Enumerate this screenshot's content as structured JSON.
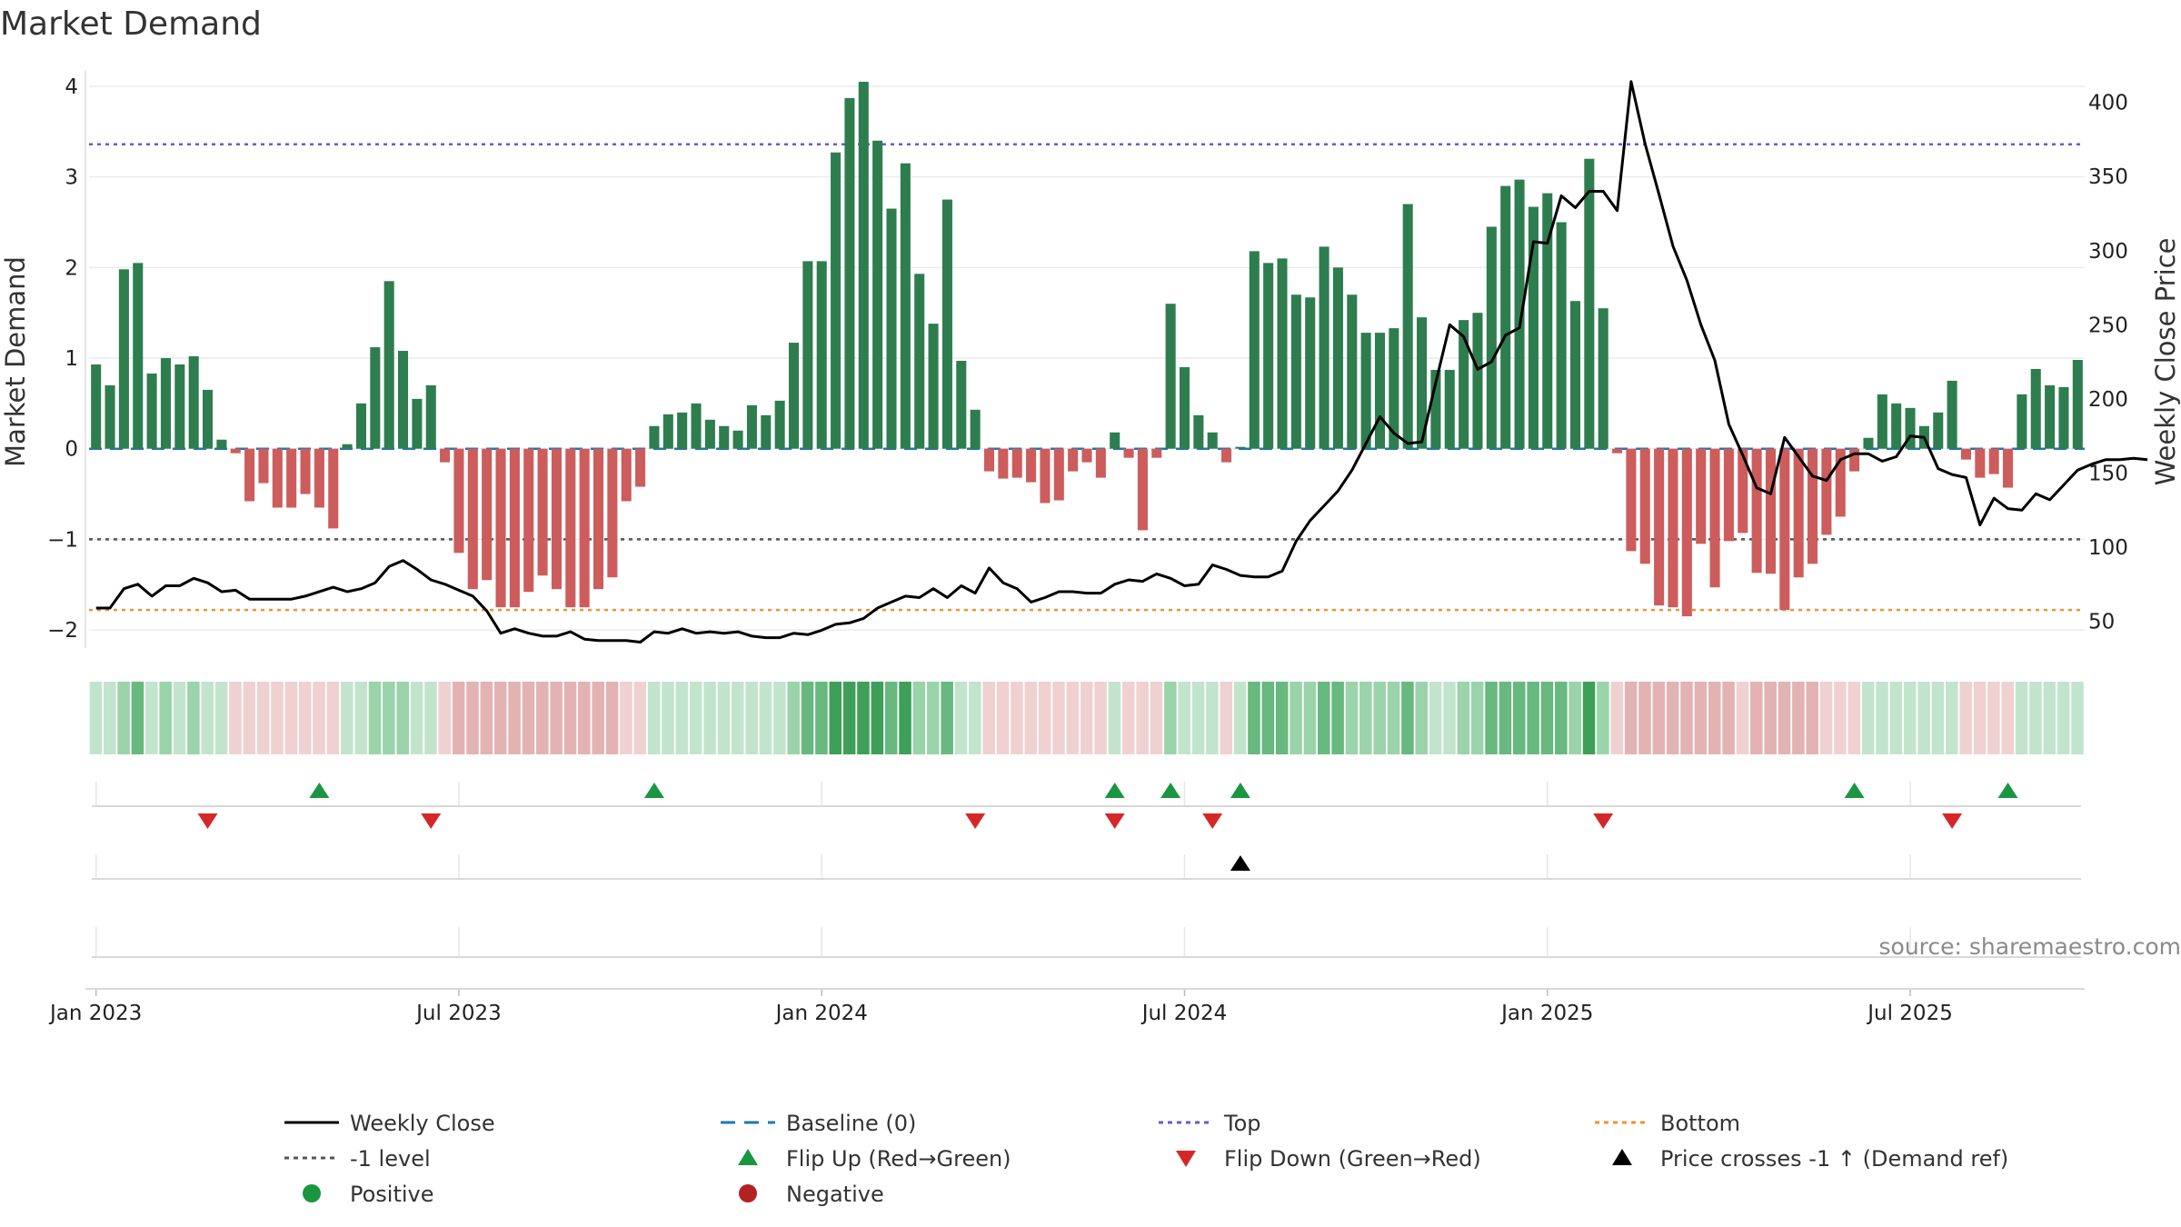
{
  "chart_data": {
    "type": "bar",
    "title": "Market Demand",
    "ylabel": "Market Demand",
    "y2label": "Weekly Close Price",
    "ylim": [
      -2.2,
      4.15
    ],
    "y2lim": [
      32,
      420
    ],
    "yticks": [
      -2,
      -1,
      0,
      1,
      2,
      3,
      4
    ],
    "y2ticks": [
      50,
      100,
      150,
      200,
      250,
      300,
      350,
      400
    ],
    "xticks": [
      {
        "label": "Jan 2023",
        "week": 1
      },
      {
        "label": "Jul 2023",
        "week": 27
      },
      {
        "label": "Jan 2024",
        "week": 53
      },
      {
        "label": "Jul 2024",
        "week": 79
      },
      {
        "label": "Jan 2025",
        "week": 105
      },
      {
        "label": "Jul 2025",
        "week": 131
      }
    ],
    "levels": {
      "top": 3.36,
      "bottom": -1.78,
      "minus_one": -1,
      "baseline": 0
    },
    "demand": [
      0.93,
      0.7,
      1.98,
      2.05,
      0.83,
      1.0,
      0.93,
      1.02,
      0.65,
      0.1,
      -0.05,
      -0.58,
      -0.38,
      -0.65,
      -0.65,
      -0.5,
      -0.65,
      -0.88,
      0.05,
      0.5,
      1.12,
      1.85,
      1.08,
      0.55,
      0.7,
      -0.15,
      -1.15,
      -1.55,
      -1.45,
      -1.75,
      -1.75,
      -1.58,
      -1.4,
      -1.55,
      -1.75,
      -1.75,
      -1.55,
      -1.42,
      -0.58,
      -0.42,
      0.25,
      0.38,
      0.4,
      0.5,
      0.32,
      0.25,
      0.2,
      0.48,
      0.37,
      0.53,
      1.17,
      2.07,
      2.07,
      3.27,
      3.87,
      4.05,
      3.4,
      2.65,
      3.15,
      1.93,
      1.38,
      2.75,
      0.97,
      0.43,
      -0.25,
      -0.33,
      -0.32,
      -0.37,
      -0.6,
      -0.57,
      -0.25,
      -0.15,
      -0.32,
      0.18,
      -0.1,
      -0.9,
      -0.1,
      1.6,
      0.9,
      0.37,
      0.18,
      -0.15,
      0.02,
      2.18,
      2.05,
      2.1,
      1.7,
      1.67,
      2.23,
      2.0,
      1.7,
      1.28,
      1.28,
      1.33,
      2.7,
      1.45,
      0.87,
      0.87,
      1.42,
      1.5,
      2.45,
      2.9,
      2.97,
      2.67,
      2.82,
      2.5,
      1.63,
      3.2,
      1.55,
      -0.05,
      -1.13,
      -1.27,
      -1.73,
      -1.75,
      -1.85,
      -1.05,
      -1.53,
      -1.02,
      -0.93,
      -1.37,
      -1.38,
      -1.78,
      -1.42,
      -1.27,
      -0.95,
      -0.75,
      -0.25,
      0.12,
      0.6,
      0.5,
      0.45,
      0.25,
      0.4,
      0.75,
      -0.12,
      -0.32,
      -0.28,
      -0.43,
      0.6,
      0.88,
      0.7,
      0.68,
      0.98
    ],
    "weekly_close": [
      [
        1,
        59
      ],
      [
        2,
        59
      ],
      [
        3,
        72
      ],
      [
        4,
        75
      ],
      [
        5,
        67
      ],
      [
        6,
        74
      ],
      [
        7,
        74
      ],
      [
        8,
        79
      ],
      [
        9,
        76
      ],
      [
        10,
        70
      ],
      [
        11,
        71
      ],
      [
        12,
        65
      ],
      [
        15,
        65
      ],
      [
        16,
        67
      ],
      [
        18,
        73
      ],
      [
        19,
        70
      ],
      [
        20,
        72
      ],
      [
        21,
        76
      ],
      [
        22,
        87
      ],
      [
        23,
        91
      ],
      [
        24,
        85
      ],
      [
        25,
        78
      ],
      [
        26,
        75
      ],
      [
        28,
        67
      ],
      [
        29,
        57
      ],
      [
        30,
        42
      ],
      [
        31,
        45
      ],
      [
        32,
        42
      ],
      [
        33,
        40
      ],
      [
        34,
        40
      ],
      [
        35,
        43
      ],
      [
        36,
        38
      ],
      [
        37,
        37
      ],
      [
        38,
        37
      ],
      [
        39,
        37
      ],
      [
        40,
        36
      ],
      [
        41,
        43
      ],
      [
        42,
        42
      ],
      [
        43,
        45
      ],
      [
        44,
        42
      ],
      [
        45,
        43
      ],
      [
        46,
        42
      ],
      [
        47,
        43
      ],
      [
        48,
        40
      ],
      [
        49,
        39
      ],
      [
        50,
        39
      ],
      [
        51,
        42
      ],
      [
        52,
        41
      ],
      [
        53,
        44
      ],
      [
        54,
        48
      ],
      [
        55,
        49
      ],
      [
        56,
        52
      ],
      [
        57,
        59
      ],
      [
        58,
        63
      ],
      [
        59,
        67
      ],
      [
        60,
        66
      ],
      [
        61,
        72
      ],
      [
        62,
        66
      ],
      [
        63,
        74
      ],
      [
        64,
        69
      ],
      [
        65,
        86
      ],
      [
        66,
        76
      ],
      [
        67,
        72
      ],
      [
        68,
        63
      ],
      [
        69,
        66
      ],
      [
        70,
        70
      ],
      [
        71,
        70
      ],
      [
        72,
        69
      ],
      [
        73,
        69
      ],
      [
        74,
        75
      ],
      [
        75,
        78
      ],
      [
        76,
        77
      ],
      [
        77,
        82
      ],
      [
        78,
        79
      ],
      [
        79,
        74
      ],
      [
        80,
        75
      ],
      [
        81,
        88
      ],
      [
        82,
        85
      ],
      [
        83,
        81
      ],
      [
        84,
        80
      ],
      [
        85,
        80
      ],
      [
        86,
        84
      ],
      [
        87,
        104
      ],
      [
        88,
        118
      ],
      [
        89,
        128
      ],
      [
        90,
        138
      ],
      [
        91,
        152
      ],
      [
        92,
        170
      ],
      [
        93,
        188
      ],
      [
        94,
        177
      ],
      [
        95,
        170
      ],
      [
        96,
        171
      ],
      [
        97,
        211
      ],
      [
        98,
        250
      ],
      [
        99,
        242
      ],
      [
        100,
        220
      ],
      [
        101,
        225
      ],
      [
        102,
        243
      ],
      [
        103,
        248
      ],
      [
        104,
        306
      ],
      [
        105,
        305
      ],
      [
        106,
        337
      ],
      [
        107,
        329
      ],
      [
        108,
        340
      ],
      [
        109,
        340
      ],
      [
        110,
        327
      ],
      [
        111,
        414
      ],
      [
        112,
        372
      ],
      [
        113,
        338
      ],
      [
        114,
        303
      ],
      [
        115,
        280
      ],
      [
        116,
        250
      ],
      [
        117,
        226
      ],
      [
        118,
        183
      ],
      [
        119,
        162
      ],
      [
        120,
        140
      ],
      [
        121,
        136
      ],
      [
        122,
        174
      ],
      [
        123,
        161
      ],
      [
        124,
        148
      ],
      [
        125,
        145
      ],
      [
        126,
        159
      ],
      [
        127,
        163
      ],
      [
        128,
        163
      ],
      [
        129,
        158
      ],
      [
        130,
        161
      ],
      [
        131,
        175
      ],
      [
        132,
        174
      ],
      [
        133,
        153
      ],
      [
        134,
        149
      ],
      [
        135,
        147
      ],
      [
        136,
        115
      ],
      [
        137,
        133
      ],
      [
        138,
        126
      ],
      [
        139,
        125
      ],
      [
        140,
        136
      ],
      [
        141,
        132
      ],
      [
        142,
        142
      ],
      [
        143,
        152
      ],
      [
        144,
        156
      ],
      [
        145,
        159
      ],
      [
        146,
        159
      ],
      [
        147,
        160
      ],
      [
        148,
        159
      ]
    ],
    "strip_pos_colors": [
      "#c3e4cc",
      "#9bd3aa",
      "#67b97f",
      "#3f9f58"
    ],
    "strip_neg_colors": [
      "#efd1d1",
      "#e3b3b3",
      "#d89595",
      "#cc7777"
    ],
    "flip_up_weeks": [
      17,
      41,
      74,
      78,
      83,
      127,
      138
    ],
    "flip_down_weeks": [
      9,
      25,
      64,
      74,
      81,
      109,
      134
    ],
    "price_cross_weeks": [
      83
    ],
    "colors": {
      "pos_bar": "#2e7d4f",
      "neg_bar": "#cd5c5c",
      "price": "#000000",
      "baseline": "#1f77b4",
      "top": "#6a5acd",
      "bottom": "#f0922f",
      "minus_one": "#555555",
      "flip_up": "#1a9641",
      "flip_down": "#d62728",
      "cross": "#000000",
      "positive_dot": "#1a9641",
      "negative_dot": "#b22222"
    }
  },
  "legend": {
    "weekly_close": "Weekly Close",
    "baseline": "Baseline (0)",
    "top": "Top",
    "bottom": "Bottom",
    "minus_one": "-1 level",
    "flip_up": "Flip Up (Red→Green)",
    "flip_down": "Flip Down (Green→Red)",
    "price_cross": "Price crosses -1 ↑ (Demand ref)",
    "positive": "Positive",
    "negative": "Negative"
  },
  "source": "source: sharemaestro.com"
}
